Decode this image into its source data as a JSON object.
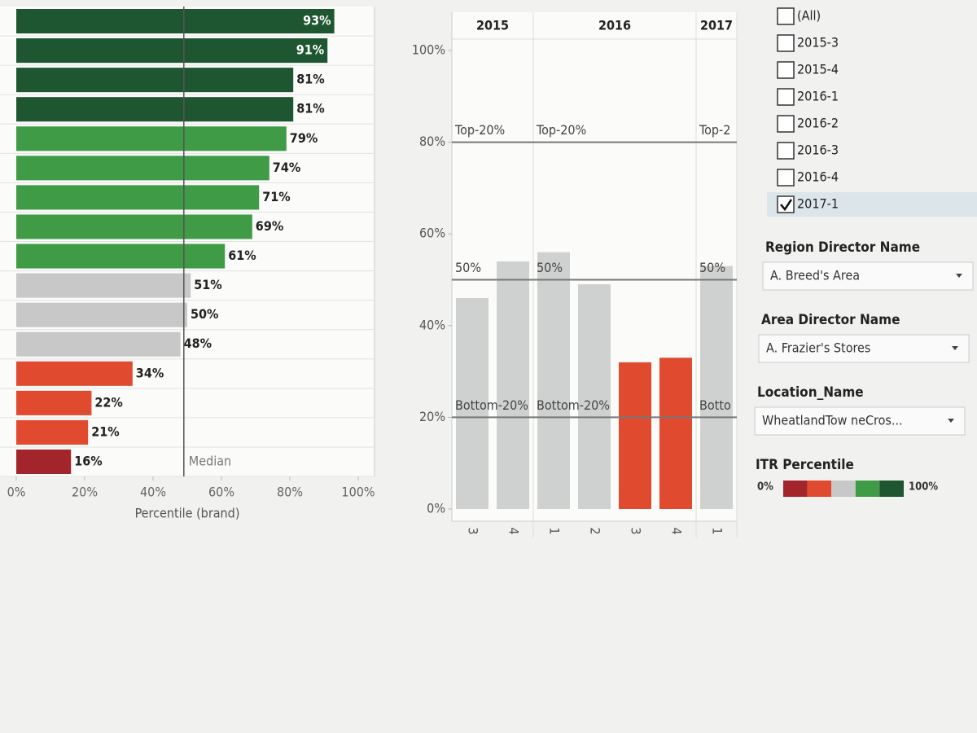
{
  "chart_data": [
    {
      "type": "bar",
      "orientation": "horizontal",
      "values": [
        93,
        91,
        81,
        81,
        79,
        74,
        71,
        69,
        61,
        51,
        50,
        48,
        34,
        22,
        21,
        16
      ],
      "value_labels": [
        "93%",
        "91%",
        "81%",
        "81%",
        "79%",
        "74%",
        "71%",
        "69%",
        "61%",
        "51%",
        "50%",
        "48%",
        "34%",
        "22%",
        "21%",
        "16%"
      ],
      "colors": [
        "#1e5631",
        "#1e5631",
        "#1e5631",
        "#1e5631",
        "#3f9b45",
        "#3f9b45",
        "#3f9b45",
        "#3f9b45",
        "#3f9b45",
        "#c8c8c8",
        "#c8c8c8",
        "#c8c8c8",
        "#e04a2f",
        "#e04a2f",
        "#e04a2f",
        "#a3252c"
      ],
      "xlim": [
        0,
        100
      ],
      "xticks": [
        {
          "value": 0,
          "label": "0%"
        },
        {
          "value": 20,
          "label": "20%"
        },
        {
          "value": 40,
          "label": "40%"
        },
        {
          "value": 60,
          "label": "60%"
        },
        {
          "value": 80,
          "label": "80%"
        },
        {
          "value": 100,
          "label": "100%"
        }
      ],
      "xlabel": "Percentile (brand)",
      "reference_line": {
        "value": 49,
        "label": "Median"
      }
    },
    {
      "type": "bar",
      "orientation": "vertical",
      "groups": [
        {
          "label": "2015",
          "categories": [
            "3",
            "4"
          ]
        },
        {
          "label": "2016",
          "categories": [
            "1",
            "2",
            "3",
            "4"
          ]
        },
        {
          "label": "2017",
          "categories": [
            "1"
          ]
        }
      ],
      "values": [
        46,
        54,
        56,
        49,
        32,
        33,
        53
      ],
      "colors": [
        "#cfd1d0",
        "#cfd1d0",
        "#cfd1d0",
        "#cfd1d0",
        "#e04a2f",
        "#e04a2f",
        "#cfd1d0"
      ],
      "ylim": [
        0,
        100
      ],
      "yticks": [
        {
          "value": 0,
          "label": "0%"
        },
        {
          "value": 20,
          "label": "20%"
        },
        {
          "value": 40,
          "label": "40%"
        },
        {
          "value": 60,
          "label": "60%"
        },
        {
          "value": 80,
          "label": "80%"
        },
        {
          "value": 100,
          "label": "100%"
        }
      ],
      "reference_lines": [
        {
          "value": 80,
          "labels": [
            "Top-20%",
            "Top-20%",
            "Top-2"
          ]
        },
        {
          "value": 50,
          "labels": [
            "50%",
            "50%",
            "50%"
          ]
        },
        {
          "value": 20,
          "labels": [
            "Bottom-20%",
            "Bottom-20%",
            "Botto"
          ]
        }
      ]
    }
  ],
  "filters": {
    "periods": [
      {
        "label": "(All)",
        "checked": false
      },
      {
        "label": "2015-3",
        "checked": false
      },
      {
        "label": "2015-4",
        "checked": false
      },
      {
        "label": "2016-1",
        "checked": false
      },
      {
        "label": "2016-2",
        "checked": false
      },
      {
        "label": "2016-3",
        "checked": false
      },
      {
        "label": "2016-4",
        "checked": false
      },
      {
        "label": "2017-1",
        "checked": true
      }
    ],
    "dropdowns": [
      {
        "label": "Region Director Name",
        "value": "A. Breed's Area"
      },
      {
        "label": "Area Director Name",
        "value": "A. Frazier's Stores"
      },
      {
        "label": "Location_Name",
        "value": "WheatlandTow neCros..."
      }
    ],
    "legend": {
      "title": "ITR Percentile",
      "min_label": "0%",
      "max_label": "100%",
      "colors": [
        "#a3252c",
        "#e04a2f",
        "#c8c8c8",
        "#3f9b45",
        "#1e5631"
      ]
    }
  }
}
